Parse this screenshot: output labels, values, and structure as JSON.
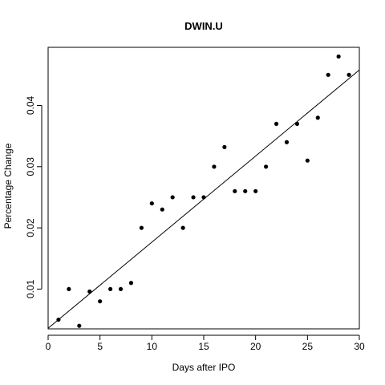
{
  "chart_data": {
    "type": "scatter",
    "title": "DWIN.U",
    "xlabel": "Days after IPO",
    "ylabel": "Percentage Change",
    "xlim": [
      0,
      30
    ],
    "ylim": [
      0.0035,
      0.0495
    ],
    "xticks": [
      0,
      5,
      10,
      15,
      20,
      25,
      30
    ],
    "yticks": [
      0.01,
      0.02,
      0.03,
      0.04
    ],
    "xtick_labels": [
      "0",
      "5",
      "10",
      "15",
      "20",
      "25",
      "30"
    ],
    "ytick_labels": [
      "0.01",
      "0.02",
      "0.03",
      "0.04"
    ],
    "grid": false,
    "point_color": "#000000",
    "series": [
      {
        "x": [
          1,
          2,
          3,
          4,
          5,
          6,
          7,
          8,
          9,
          10,
          11,
          12,
          13,
          14,
          15,
          16,
          17,
          18,
          19,
          20,
          21,
          22,
          23,
          24,
          25,
          26,
          27,
          28,
          29
        ],
        "y": [
          0.005,
          0.01,
          0.004,
          0.0096,
          0.008,
          0.01,
          0.01,
          0.011,
          0.02,
          0.024,
          0.023,
          0.025,
          0.02,
          0.025,
          0.025,
          0.03,
          0.0332,
          0.026,
          0.026,
          0.026,
          0.03,
          0.037,
          0.034,
          0.037,
          0.031,
          0.038,
          0.045,
          0.048,
          0.045
        ]
      }
    ],
    "trendline": {
      "x": [
        0,
        30
      ],
      "y": [
        0.0036,
        0.0458
      ]
    }
  }
}
